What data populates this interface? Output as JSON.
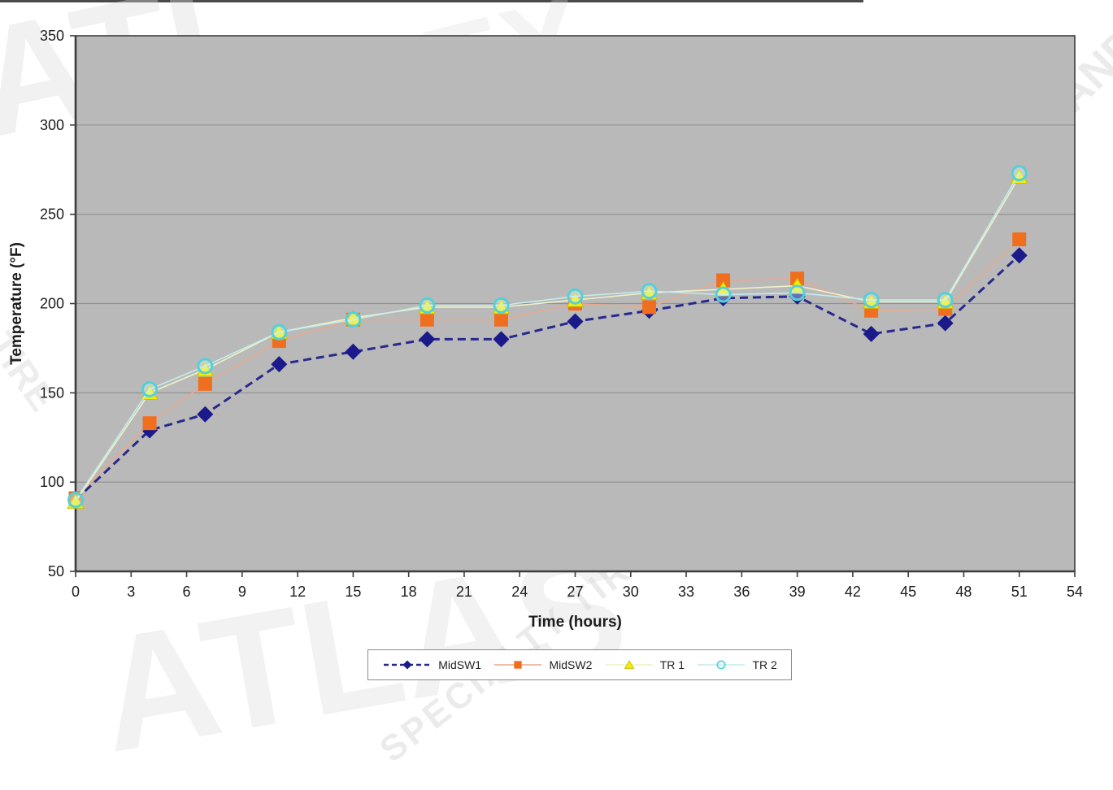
{
  "watermark": {
    "fragments": [
      "ATL",
      "EX",
      "AND",
      "TIRE",
      "ATLAS",
      "SPECIALTY TIRE",
      "TIRE"
    ]
  },
  "chart_data": {
    "type": "line",
    "title": "",
    "xlabel": "Time (hours)",
    "ylabel": "Temperature (°F)",
    "xlim": [
      0,
      54
    ],
    "xtick_step": 3,
    "ylim": [
      50,
      350
    ],
    "ytick_step": 50,
    "grid": true,
    "legend_position": "bottom",
    "plot_bg": "#b9b9b9",
    "grid_color": "#8f8f8f",
    "axis_color": "#3c3c3c",
    "text_color": "#1c1c1c",
    "x": [
      0,
      4,
      7,
      11,
      15,
      19,
      23,
      27,
      31,
      35,
      39,
      43,
      47,
      51
    ],
    "series": [
      {
        "name": "MidSW1",
        "marker": "diamond",
        "line_color": "#28288e",
        "line_dash": "10 6",
        "line_width": 3,
        "marker_color": "#1a1a8a",
        "values": [
          90,
          129,
          138,
          166,
          173,
          180,
          180,
          190,
          196,
          203,
          204,
          183,
          189,
          227
        ]
      },
      {
        "name": "MidSW2",
        "marker": "square",
        "line_color": "#e9a98d",
        "line_dash": "",
        "line_width": 1.6,
        "marker_color": "#f06f1f",
        "values": [
          91,
          133,
          155,
          179,
          191,
          191,
          191,
          200,
          198,
          213,
          214,
          196,
          197,
          236
        ]
      },
      {
        "name": "TR 1",
        "marker": "triangle",
        "line_color": "#eef0c6",
        "line_dash": "",
        "line_width": 1.6,
        "marker_color": "#f2f000",
        "marker_stroke": "#cfc000",
        "values": [
          89,
          150,
          163,
          184,
          192,
          198,
          198,
          202,
          206,
          208,
          210,
          201,
          201,
          271
        ]
      },
      {
        "name": "TR 2",
        "marker": "circle",
        "line_color": "#c2ecec",
        "line_dash": "",
        "line_width": 1.6,
        "marker_color": "#55d0d8",
        "marker_fill": "rgba(215,246,246,0.4)",
        "values": [
          90,
          152,
          165,
          184,
          191,
          199,
          199,
          204,
          207,
          205,
          206,
          202,
          202,
          273
        ]
      }
    ]
  }
}
